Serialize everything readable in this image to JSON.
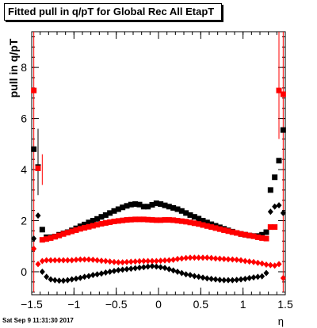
{
  "title": "Fitted pull in q/pT for Global Rec All EtapT",
  "timestamp": "Sat Sep  9 11:31:30 2017",
  "chart_data": {
    "type": "scatter",
    "title": "Fitted pull in q/pT for Global Rec All EtapT",
    "xlabel": "η",
    "ylabel": "pull in q/pT",
    "xlim": [
      -1.5,
      1.5
    ],
    "ylim": [
      -0.9,
      9.4
    ],
    "xticks": [
      -1.5,
      -1,
      -0.5,
      0,
      0.5,
      1,
      1.5
    ],
    "xtick_labels": [
      "−1.5",
      "−1",
      "−0.5",
      "0",
      "0.5",
      "1",
      "1.5"
    ],
    "yticks": [
      0,
      2,
      4,
      6,
      8
    ],
    "ytick_labels": [
      "0",
      "2",
      "4",
      "6",
      "8"
    ],
    "grid": false,
    "colors": {
      "black": "#000000",
      "red": "#ff0000"
    },
    "series": [
      {
        "marker": "square",
        "color": "#000000",
        "x": [
          -1.475,
          -1.425,
          -1.375,
          -1.325,
          -1.275,
          -1.225,
          -1.175,
          -1.125,
          -1.075,
          -1.025,
          -0.975,
          -0.925,
          -0.875,
          -0.825,
          -0.775,
          -0.725,
          -0.675,
          -0.625,
          -0.575,
          -0.525,
          -0.475,
          -0.425,
          -0.375,
          -0.325,
          -0.275,
          -0.225,
          -0.175,
          -0.125,
          -0.075,
          -0.025,
          0.025,
          0.075,
          0.125,
          0.175,
          0.225,
          0.275,
          0.325,
          0.375,
          0.425,
          0.475,
          0.525,
          0.575,
          0.625,
          0.675,
          0.725,
          0.775,
          0.825,
          0.875,
          0.925,
          0.975,
          1.025,
          1.075,
          1.125,
          1.175,
          1.225,
          1.275,
          1.325,
          1.375,
          1.425,
          1.475
        ],
        "y": [
          4.8,
          4.1,
          1.65,
          1.35,
          1.35,
          1.38,
          1.45,
          1.5,
          1.55,
          1.62,
          1.7,
          1.78,
          1.85,
          1.93,
          2.0,
          2.07,
          2.15,
          2.22,
          2.3,
          2.38,
          2.45,
          2.52,
          2.58,
          2.63,
          2.65,
          2.63,
          2.55,
          2.55,
          2.62,
          2.68,
          2.65,
          2.6,
          2.55,
          2.5,
          2.45,
          2.38,
          2.3,
          2.22,
          2.15,
          2.08,
          2.0,
          1.93,
          1.86,
          1.8,
          1.74,
          1.68,
          1.62,
          1.57,
          1.52,
          1.48,
          1.45,
          1.42,
          1.4,
          1.4,
          1.45,
          1.55,
          3.2,
          3.7,
          4.35,
          5.55
        ]
      },
      {
        "marker": "square",
        "color": "#ff0000",
        "x": [
          -1.475,
          -1.425,
          -1.375,
          -1.325,
          -1.275,
          -1.225,
          -1.175,
          -1.125,
          -1.075,
          -1.025,
          -0.975,
          -0.925,
          -0.875,
          -0.825,
          -0.775,
          -0.725,
          -0.675,
          -0.625,
          -0.575,
          -0.525,
          -0.475,
          -0.425,
          -0.375,
          -0.325,
          -0.275,
          -0.225,
          -0.175,
          -0.125,
          -0.075,
          -0.025,
          0.025,
          0.075,
          0.125,
          0.175,
          0.225,
          0.275,
          0.325,
          0.375,
          0.425,
          0.475,
          0.525,
          0.575,
          0.625,
          0.675,
          0.725,
          0.775,
          0.825,
          0.875,
          0.925,
          0.975,
          1.025,
          1.075,
          1.125,
          1.175,
          1.225,
          1.275,
          1.325,
          1.375,
          1.425,
          1.475
        ],
        "y": [
          7.1,
          4.05,
          1.25,
          1.28,
          1.32,
          1.37,
          1.42,
          1.48,
          1.53,
          1.58,
          1.63,
          1.68,
          1.72,
          1.76,
          1.8,
          1.84,
          1.88,
          1.91,
          1.94,
          1.97,
          1.99,
          2.01,
          2.03,
          2.04,
          2.05,
          2.05,
          2.05,
          2.04,
          2.03,
          2.02,
          2.02,
          2.03,
          2.03,
          2.02,
          2.0,
          1.98,
          1.96,
          1.93,
          1.9,
          1.87,
          1.83,
          1.79,
          1.75,
          1.71,
          1.67,
          1.63,
          1.59,
          1.55,
          1.52,
          1.48,
          1.45,
          1.42,
          1.39,
          1.35,
          1.32,
          1.3,
          1.75,
          1.75,
          7.1,
          6.95
        ]
      },
      {
        "marker": "diamond",
        "color": "#000000",
        "x": [
          -1.475,
          -1.425,
          -1.375,
          -1.325,
          -1.275,
          -1.225,
          -1.175,
          -1.125,
          -1.075,
          -1.025,
          -0.975,
          -0.925,
          -0.875,
          -0.825,
          -0.775,
          -0.725,
          -0.675,
          -0.625,
          -0.575,
          -0.525,
          -0.475,
          -0.425,
          -0.375,
          -0.325,
          -0.275,
          -0.225,
          -0.175,
          -0.125,
          -0.075,
          -0.025,
          0.025,
          0.075,
          0.125,
          0.175,
          0.225,
          0.275,
          0.325,
          0.375,
          0.425,
          0.475,
          0.525,
          0.575,
          0.625,
          0.675,
          0.725,
          0.775,
          0.825,
          0.875,
          0.925,
          0.975,
          1.025,
          1.075,
          1.125,
          1.175,
          1.225,
          1.275,
          1.325,
          1.375,
          1.425,
          1.475
        ],
        "y": [
          1.3,
          2.2,
          0.0,
          -0.2,
          -0.3,
          -0.33,
          -0.35,
          -0.35,
          -0.33,
          -0.3,
          -0.27,
          -0.24,
          -0.2,
          -0.17,
          -0.13,
          -0.1,
          -0.07,
          -0.03,
          0.0,
          0.03,
          0.06,
          0.08,
          0.1,
          0.12,
          0.14,
          0.16,
          0.18,
          0.2,
          0.22,
          0.2,
          0.18,
          0.15,
          0.1,
          0.05,
          0.0,
          -0.05,
          -0.1,
          -0.13,
          -0.17,
          -0.2,
          -0.23,
          -0.26,
          -0.28,
          -0.3,
          -0.32,
          -0.33,
          -0.33,
          -0.33,
          -0.32,
          -0.3,
          -0.28,
          -0.25,
          -0.22,
          -0.2,
          -0.18,
          -0.05,
          2.35,
          2.55,
          2.6,
          2.3
        ]
      },
      {
        "marker": "diamond",
        "color": "#ff0000",
        "x": [
          -1.475,
          -1.425,
          -1.375,
          -1.325,
          -1.275,
          -1.225,
          -1.175,
          -1.125,
          -1.075,
          -1.025,
          -0.975,
          -0.925,
          -0.875,
          -0.825,
          -0.775,
          -0.725,
          -0.675,
          -0.625,
          -0.575,
          -0.525,
          -0.475,
          -0.425,
          -0.375,
          -0.325,
          -0.275,
          -0.225,
          -0.175,
          -0.125,
          -0.075,
          -0.025,
          0.025,
          0.075,
          0.125,
          0.175,
          0.225,
          0.275,
          0.325,
          0.375,
          0.425,
          0.475,
          0.525,
          0.575,
          0.625,
          0.675,
          0.725,
          0.775,
          0.825,
          0.875,
          0.925,
          0.975,
          1.025,
          1.075,
          1.125,
          1.175,
          1.225,
          1.275,
          1.325,
          1.375,
          1.425,
          1.475
        ],
        "y": [
          0.9,
          0.3,
          0.42,
          0.45,
          0.45,
          0.45,
          0.45,
          0.45,
          0.45,
          0.45,
          0.47,
          0.48,
          0.48,
          0.48,
          0.47,
          0.45,
          0.43,
          0.42,
          0.4,
          0.38,
          0.37,
          0.37,
          0.38,
          0.39,
          0.4,
          0.41,
          0.42,
          0.42,
          0.42,
          0.42,
          0.43,
          0.44,
          0.45,
          0.47,
          0.5,
          0.52,
          0.54,
          0.55,
          0.55,
          0.55,
          0.55,
          0.55,
          0.54,
          0.52,
          0.51,
          0.5,
          0.49,
          0.48,
          0.47,
          0.45,
          0.42,
          0.4,
          0.38,
          0.35,
          0.32,
          0.28,
          0.26,
          0.24,
          0.3,
          -0.25
        ]
      }
    ],
    "error_bars_y": [
      {
        "x": -1.475,
        "low": -0.8,
        "high": 9.4,
        "color": "#ff0000"
      },
      {
        "x": -1.425,
        "low": 3.0,
        "high": 5.6,
        "color": "#000000"
      },
      {
        "x": -1.375,
        "low": 3.4,
        "high": 4.6,
        "color": "#ff0000"
      },
      {
        "x": 1.425,
        "low": 5.2,
        "high": 9.4,
        "color": "#ff0000"
      },
      {
        "x": 1.475,
        "low": -0.8,
        "high": 9.4,
        "color": "#ff0000"
      }
    ]
  }
}
